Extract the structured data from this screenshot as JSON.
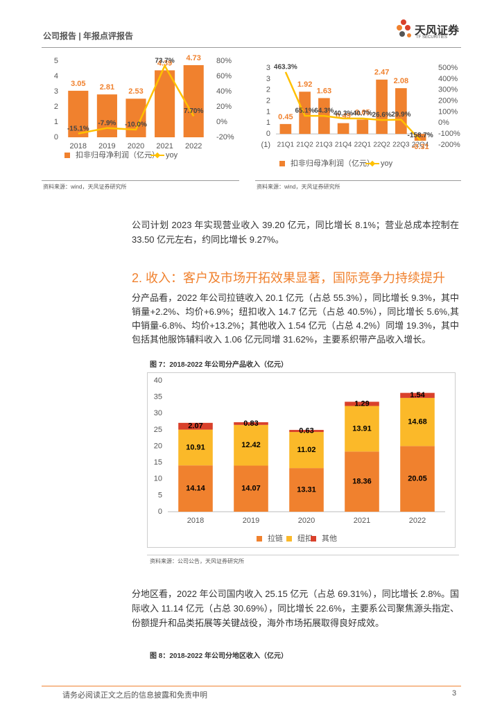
{
  "header": {
    "report_type": "公司报告 | 年报点评报告",
    "logo_name": "天风证券",
    "logo_en": "TF SECURITIES"
  },
  "chart_data": [
    {
      "type": "bar",
      "categories": [
        "2018",
        "2019",
        "2020",
        "2021",
        "2022"
      ],
      "series": [
        {
          "name": "扣非归母净利润（亿元）",
          "color": "#f0812e",
          "values": [
            3.05,
            2.81,
            2.53,
            4.39,
            4.73
          ]
        },
        {
          "name": "yoy",
          "color": "#ffc000",
          "type": "line",
          "axis": "y2",
          "values": [
            -15.1,
            -7.9,
            -10.0,
            73.7,
            7.7
          ],
          "value_labels": [
            "-15.1%",
            "-7.9%",
            "-10.0%",
            "73.7%",
            "7.70%"
          ]
        }
      ],
      "ylim": [
        0,
        5
      ],
      "yticks": [
        0,
        1,
        2,
        3,
        4,
        5
      ],
      "y2lim": [
        -20,
        80
      ],
      "y2ticks": [
        {
          "value": -20,
          "label": "-20%"
        },
        {
          "value": 0,
          "label": "0%"
        },
        {
          "value": 20,
          "label": "20%"
        },
        {
          "value": 40,
          "label": "40%"
        },
        {
          "value": 60,
          "label": "60%"
        },
        {
          "value": 80,
          "label": "80%"
        }
      ],
      "source": "资料来源：wind，天风证券研究所"
    },
    {
      "type": "bar",
      "categories": [
        "21Q1",
        "21Q2",
        "21Q3",
        "21Q4",
        "22Q1",
        "22Q2",
        "22Q3",
        "22Q4"
      ],
      "series": [
        {
          "name": "扣非归母净利润（亿元）",
          "color": "#f0812e",
          "values": [
            0.45,
            1.92,
            1.63,
            0.49,
            0.65,
            2.47,
            2.08,
            -0.31
          ]
        },
        {
          "name": "yoy",
          "color": "#ffc000",
          "type": "line",
          "axis": "y2",
          "values": [
            463.3,
            65.1,
            64.3,
            40.3,
            40.7,
            26.6,
            29.9,
            -158.7
          ],
          "value_labels": [
            "463.3%",
            "65.1%",
            "64.3%",
            "40.3%",
            "40.7%",
            "26.6%",
            "29.9%",
            "-158.7%"
          ]
        }
      ],
      "ylim": [
        -0.5,
        3
      ],
      "yticks": [
        {
          "value": -0.5,
          "label": "(1)"
        },
        0,
        {
          "value": 0.5,
          "label": "1"
        },
        1,
        {
          "value": 1.5,
          "label": "2"
        },
        2,
        {
          "value": 2.5,
          "label": "3"
        },
        3
      ],
      "y2lim": [
        -200,
        500
      ],
      "y2ticks": [
        {
          "value": -200,
          "label": "-200%"
        },
        {
          "value": -100,
          "label": "-100%"
        },
        {
          "value": 0,
          "label": "0%"
        },
        {
          "value": 100,
          "label": "100%"
        },
        {
          "value": 200,
          "label": "200%"
        },
        {
          "value": 300,
          "label": "300%"
        },
        {
          "value": 400,
          "label": "400%"
        },
        {
          "value": 500,
          "label": "500%"
        }
      ],
      "source": "资料来源：wind，天风证券研究所"
    },
    {
      "type": "stacked_bar",
      "title": "图 7：2018-2022 年公司分产品收入（亿元）",
      "categories": [
        "2018",
        "2019",
        "2020",
        "2021",
        "2022"
      ],
      "series": [
        {
          "name": "拉链",
          "color": "#f0812e",
          "values": [
            14.14,
            14.07,
            13.31,
            18.36,
            20.05
          ]
        },
        {
          "name": "纽扣",
          "color": "#fbb929",
          "values": [
            10.91,
            12.42,
            11.02,
            13.91,
            14.68
          ]
        },
        {
          "name": "其他",
          "color": "#d9412b",
          "values": [
            2.07,
            0.83,
            0.63,
            1.29,
            1.54
          ]
        }
      ],
      "ylim": [
        0,
        40
      ],
      "yticks": [
        0,
        5,
        10,
        15,
        20,
        25,
        30,
        35,
        40
      ],
      "source": "资料来源：公司公告，天风证券研究所"
    }
  ],
  "body": {
    "para_1": "公司计划 2023 年实现营业收入 39.20 亿元，同比增长 8.1%；营业总成本控制在 33.50 亿元左右，约同比增长 9.27%。",
    "heading_2": "2. 收入：客户及市场开拓效果显著，国际竞争力持续提升",
    "para_2": "分产品看，2022 年公司拉链收入 20.1 亿元（占总 55.3%），同比增长 9.3%，其中销量+2.2%、均价+6.9%；纽扣收入 14.7 亿元（占总 40.5%），同比增长 5.6%,其中销量-6.8%、均价+13.2%；其他收入 1.54 亿元（占总 4.2%）同增 19.3%，其中包括其他服饰辅料收入 1.06 亿元同增 31.62%，主要系织带产品收入增长。",
    "para_3": "分地区看，2022 年公司国内收入 25.15 亿元（占总 69.31%），同比增长 2.8%。国际收入 11.14 亿元（占总 30.69%），同比增长 22.6%，主要系公司聚焦源头指定、份额提升和品类拓展等关键战役，海外市场拓展取得良好成效。",
    "figure_8_title": "图 8：2018-2022 年公司分地区收入（亿元）"
  },
  "footer": {
    "disclaimer": "请务必阅读正文之后的信息披露和免责申明",
    "page": "3"
  }
}
